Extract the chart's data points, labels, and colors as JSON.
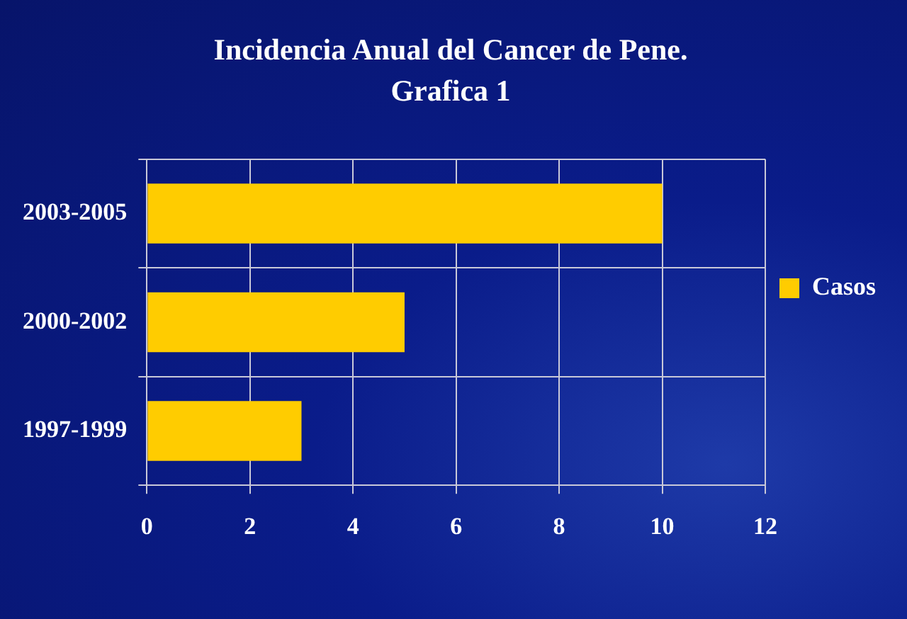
{
  "chart_data": {
    "type": "bar",
    "orientation": "horizontal",
    "title": "Incidencia Anual del Cancer de Pene.",
    "subtitle": "Grafica 1",
    "categories": [
      "2003-2005",
      "2000-2002",
      "1997-1999"
    ],
    "series": [
      {
        "name": "Casos",
        "color": "#ffcc00",
        "values": [
          10,
          5,
          3
        ]
      }
    ],
    "xlim": [
      0,
      12
    ],
    "xticks": [
      0,
      2,
      4,
      6,
      8,
      10,
      12
    ],
    "grid": true,
    "legend": "right"
  }
}
